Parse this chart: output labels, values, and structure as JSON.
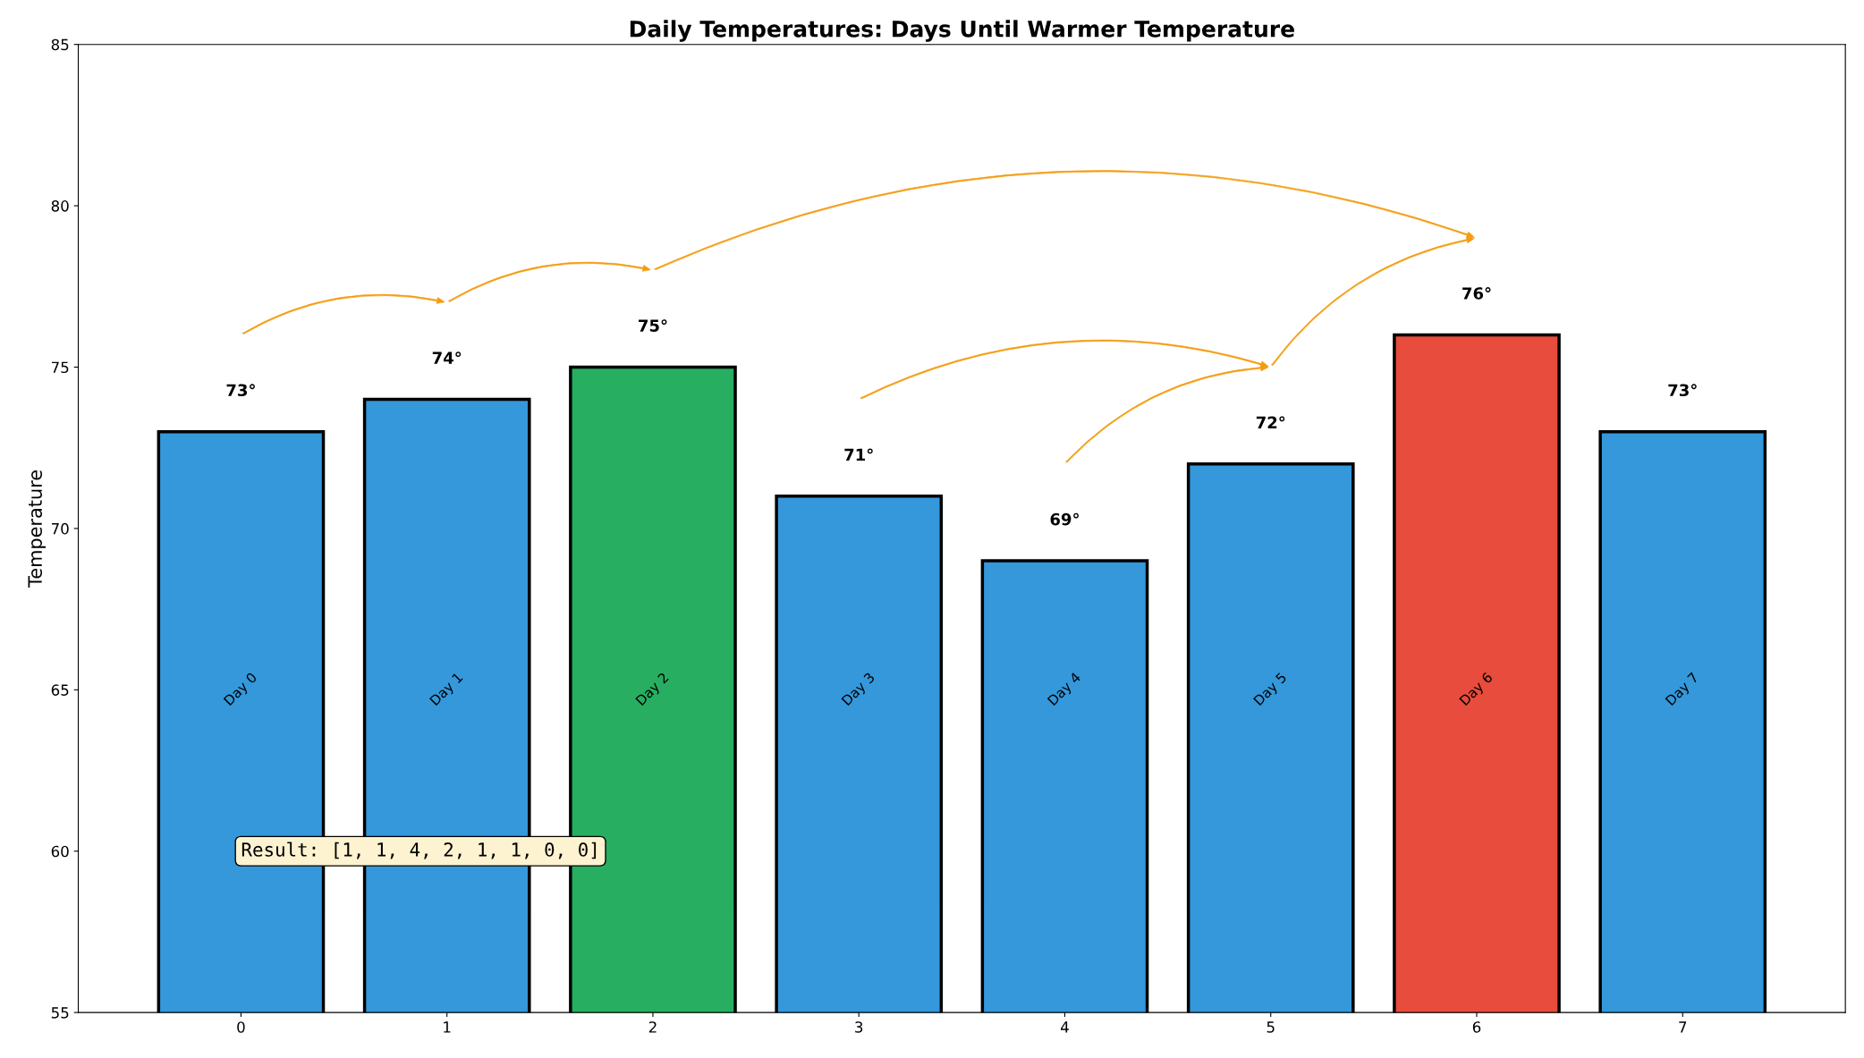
{
  "chart_data": {
    "type": "bar",
    "title": "Daily Temperatures: Days Until Warmer Temperature",
    "ylabel": "Temperature",
    "categories": [
      "0",
      "1",
      "2",
      "3",
      "4",
      "5",
      "6",
      "7"
    ],
    "values": [
      73,
      74,
      75,
      71,
      69,
      72,
      76,
      73
    ],
    "colors": [
      "#3498db",
      "#3498db",
      "#27ae60",
      "#3498db",
      "#3498db",
      "#3498db",
      "#e74c3c",
      "#3498db"
    ],
    "value_labels": [
      "73°",
      "74°",
      "75°",
      "71°",
      "69°",
      "72°",
      "76°",
      "73°"
    ],
    "ylim": [
      55,
      85
    ],
    "yticks": [
      55,
      60,
      65,
      70,
      75,
      80,
      85
    ],
    "grid": false,
    "legend": false,
    "annotations": [
      "Day 0",
      "Day 1",
      "Day 2",
      "Day 3",
      "Day 4",
      "Day 5",
      "Day 6",
      "Day 7",
      "Result: [1, 1, 4, 2, 1, 1, 0, 0]"
    ]
  }
}
